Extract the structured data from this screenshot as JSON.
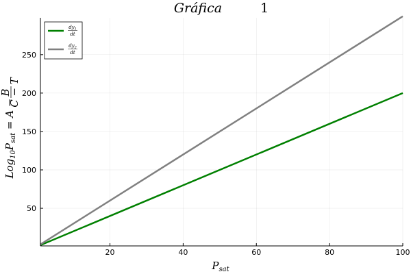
{
  "chart_data": {
    "type": "line",
    "title": {
      "word": "Gráfica",
      "number": "1"
    },
    "xlabel": {
      "base": "P",
      "sub": "sat"
    },
    "ylabel": {
      "prefix": "Log",
      "sub1": "10",
      "P": "P",
      "sub2": "sat",
      "rest": " = A − ",
      "frac_num": "B",
      "frac_den": "C − T"
    },
    "xlim": [
      1,
      100
    ],
    "ylim": [
      1,
      298
    ],
    "xticks": [
      20,
      40,
      60,
      80,
      100
    ],
    "yticks": [
      50,
      100,
      150,
      200,
      250
    ],
    "grid": true,
    "legend_position": "top-left",
    "series": [
      {
        "name": "dy1/dt",
        "num": "dy",
        "num_sub": "1",
        "den": "dt",
        "color": "#008000",
        "x": [
          1,
          100
        ],
        "y": [
          2,
          200
        ]
      },
      {
        "name": "dy2/dt",
        "num": "dy",
        "num_sub": "2",
        "den": "dt",
        "color": "#808080",
        "x": [
          1,
          100
        ],
        "y": [
          3,
          300
        ]
      }
    ]
  }
}
